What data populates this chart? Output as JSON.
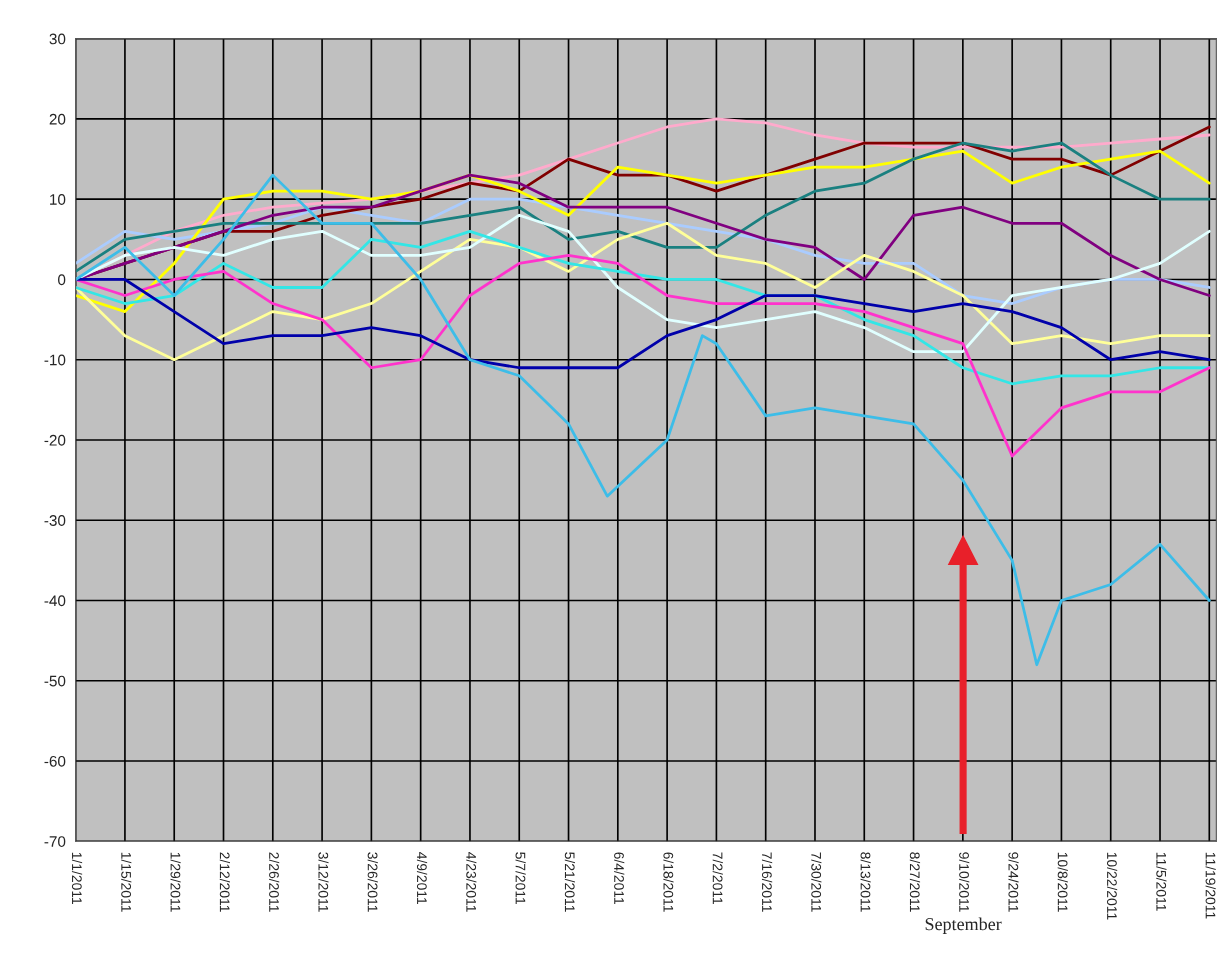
{
  "chart_data": {
    "type": "line",
    "x": [
      "2011-01-01",
      "2011-01-15",
      "2011-01-29",
      "2011-02-12",
      "2011-02-26",
      "2011-03-12",
      "2011-03-26",
      "2011-04-09",
      "2011-04-23",
      "2011-05-07",
      "2011-05-21",
      "2011-06-04",
      "2011-06-18",
      "2011-07-02",
      "2011-07-16",
      "2011-07-30",
      "2011-08-13",
      "2011-08-27",
      "2011-09-10",
      "2011-09-24",
      "2011-10-08",
      "2011-10-22",
      "2011-11-05",
      "2011-11-19"
    ],
    "series": [
      {
        "color": "#ffaacc",
        "values": [
          0,
          3,
          6,
          8,
          9,
          9.5,
          10,
          11,
          12,
          13,
          15,
          17,
          19,
          20,
          19.5,
          18,
          17,
          16.5,
          16.5,
          16.5,
          16.5,
          17,
          17.5,
          18
        ]
      },
      {
        "color": "#aaccff",
        "values": [
          2,
          6,
          5,
          6,
          7,
          9,
          8,
          7,
          10,
          10,
          9,
          8,
          7,
          6,
          5,
          3,
          2,
          2,
          -2,
          -3,
          -1,
          0,
          0,
          -1
        ]
      },
      {
        "color": "#800000",
        "values": [
          0,
          2,
          4,
          6,
          6,
          8,
          9,
          10,
          12,
          11,
          15,
          13,
          13,
          11,
          13,
          15,
          17,
          17,
          17,
          15,
          15,
          13,
          16,
          19
        ]
      },
      {
        "color": "#ffff00",
        "values": [
          -2,
          -4,
          2,
          10,
          11,
          11,
          10,
          11,
          13,
          11,
          8,
          14,
          13,
          12,
          13,
          14,
          14,
          15,
          16,
          12,
          14,
          15,
          16,
          12
        ]
      },
      {
        "color": "#1a8080",
        "values": [
          1,
          5,
          6,
          7,
          7,
          7,
          7,
          7,
          8,
          9,
          5,
          6,
          4,
          4,
          8,
          11,
          12,
          15,
          17,
          16,
          17,
          13,
          10,
          10
        ]
      },
      {
        "color": "#800080",
        "values": [
          0,
          2,
          4,
          6,
          8,
          9,
          9,
          11,
          13,
          12,
          9,
          9,
          9,
          7,
          5,
          4,
          0,
          8,
          9,
          7,
          7,
          3,
          0,
          -2
        ]
      },
      {
        "color": "#ffff99",
        "values": [
          -1,
          -7,
          -10,
          -7,
          -4,
          -5,
          -3,
          1,
          5,
          4,
          1,
          5,
          7,
          3,
          2,
          -1,
          3,
          1,
          -2,
          -8,
          -7,
          -8,
          -7,
          -7
        ]
      },
      {
        "color": "#e0ffff",
        "values": [
          0,
          3,
          4,
          3,
          5,
          6,
          3,
          3,
          4,
          8,
          6,
          -1,
          -5,
          -6,
          -5,
          -4,
          -6,
          -9,
          -9,
          -2,
          -1,
          0,
          2,
          6
        ]
      },
      {
        "color": "#33e6e6",
        "values": [
          -1,
          -3,
          -2,
          2,
          -1,
          -1,
          5,
          4,
          6,
          4,
          2,
          1,
          0,
          0,
          -2,
          -2,
          -5,
          -7,
          -11,
          -13,
          -12,
          -12,
          -11,
          -11
        ]
      },
      {
        "color": "#ff33cc",
        "values": [
          0,
          -2,
          0,
          1,
          -3,
          -5,
          -11,
          -10,
          -2,
          2,
          3,
          2,
          -2,
          -3,
          -3,
          -3,
          -4,
          -6,
          -8,
          -22,
          -16,
          -14,
          -14,
          -11
        ]
      },
      {
        "color": "#0000aa",
        "values": [
          0,
          0,
          -4,
          -8,
          -7,
          -7,
          -6,
          -7,
          -10,
          -11,
          -11,
          -11,
          -7,
          -5,
          -2,
          -2,
          -3,
          -4,
          -3,
          -4,
          -6,
          -10,
          -9,
          -10
        ]
      },
      {
        "color": "#3dbde8",
        "x": [
          "2011-01-01",
          "2011-01-15",
          "2011-01-29",
          "2011-02-12",
          "2011-02-26",
          "2011-03-12",
          "2011-03-26",
          "2011-04-09",
          "2011-04-23",
          "2011-05-07",
          "2011-05-21",
          "2011-06-01",
          "2011-06-18",
          "2011-06-28",
          "2011-07-02",
          "2011-07-16",
          "2011-07-30",
          "2011-08-13",
          "2011-08-27",
          "2011-09-10",
          "2011-09-24",
          "2011-10-01",
          "2011-10-08",
          "2011-10-22",
          "2011-11-05",
          "2011-11-19"
        ],
        "values": [
          0,
          4,
          -2,
          5,
          13,
          7,
          7,
          0,
          -10,
          -12,
          -18,
          -27,
          -20,
          -7,
          -8,
          -17,
          -16,
          -17,
          -18,
          -25,
          -35,
          -48,
          -40,
          -38,
          -33,
          -40
        ]
      }
    ],
    "xlim": [
      "2011-01-01",
      "2011-11-21"
    ],
    "xticks": [
      {
        "value": "2011-01-01",
        "label": "1/1/2011"
      },
      {
        "value": "2011-01-15",
        "label": "1/15/2011"
      },
      {
        "value": "2011-01-29",
        "label": "1/29/2011"
      },
      {
        "value": "2011-02-12",
        "label": "2/12/2011"
      },
      {
        "value": "2011-02-26",
        "label": "2/26/2011"
      },
      {
        "value": "2011-03-12",
        "label": "3/12/2011"
      },
      {
        "value": "2011-03-26",
        "label": "3/26/2011"
      },
      {
        "value": "2011-04-09",
        "label": "4/9/2011"
      },
      {
        "value": "2011-04-23",
        "label": "4/23/2011"
      },
      {
        "value": "2011-05-07",
        "label": "5/7/2011"
      },
      {
        "value": "2011-05-21",
        "label": "5/21/2011"
      },
      {
        "value": "2011-06-04",
        "label": "6/4/2011"
      },
      {
        "value": "2011-06-18",
        "label": "6/18/2011"
      },
      {
        "value": "2011-07-02",
        "label": "7/2/2011"
      },
      {
        "value": "2011-07-16",
        "label": "7/16/2011"
      },
      {
        "value": "2011-07-30",
        "label": "7/30/2011"
      },
      {
        "value": "2011-08-13",
        "label": "8/13/2011"
      },
      {
        "value": "2011-08-27",
        "label": "8/27/2011"
      },
      {
        "value": "2011-09-10",
        "label": "9/10/2011"
      },
      {
        "value": "2011-09-24",
        "label": "9/24/2011"
      },
      {
        "value": "2011-10-08",
        "label": "10/8/2011"
      },
      {
        "value": "2011-10-22",
        "label": "10/22/2011"
      },
      {
        "value": "2011-11-05",
        "label": "11/5/2011"
      },
      {
        "value": "2011-11-19",
        "label": "11/19/2011"
      }
    ],
    "ylim": [
      -70,
      30
    ],
    "yticks": [
      -70,
      -60,
      -50,
      -40,
      -30,
      -20,
      -10,
      0,
      10,
      20,
      30
    ],
    "grid": true,
    "annotations": [
      "September"
    ]
  }
}
